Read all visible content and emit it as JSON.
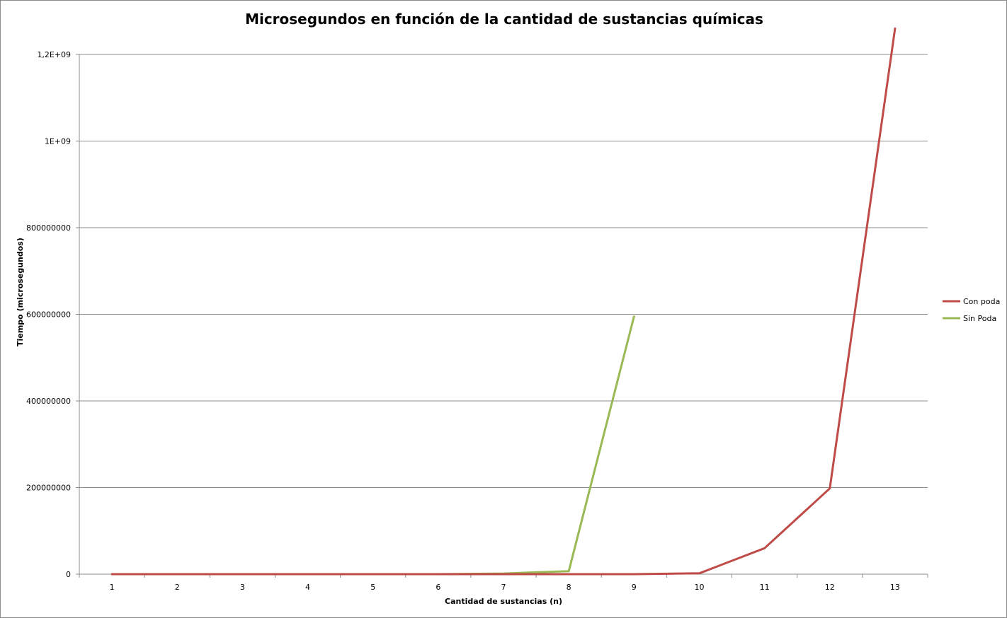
{
  "chart_data": {
    "type": "line",
    "title": "Microsegundos en función de la cantidad de sustancias químicas",
    "xlabel": "Cantidad  de sustancias  (n)",
    "ylabel": "Tiempo  (microsegundos)",
    "categories": [
      "1",
      "2",
      "3",
      "4",
      "5",
      "6",
      "7",
      "8",
      "9",
      "10",
      "11",
      "12",
      "13"
    ],
    "y_ticks": [
      {
        "value": 0,
        "label": "0"
      },
      {
        "value": 200000000,
        "label": "200000000"
      },
      {
        "value": 400000000,
        "label": "400000000"
      },
      {
        "value": 600000000,
        "label": "600000000"
      },
      {
        "value": 800000000,
        "label": "800000000"
      },
      {
        "value": 1000000000,
        "label": "1E+09"
      },
      {
        "value": 1200000000,
        "label": "1,2E+09"
      }
    ],
    "ylim": [
      0,
      1200000000
    ],
    "grid": true,
    "legend_position": "right",
    "series": [
      {
        "name": "Con poda",
        "color": "#be4b48",
        "values": [
          0,
          0,
          0,
          0,
          0,
          0,
          0,
          0,
          0,
          2000000,
          60000000,
          198000000,
          1260000000
        ]
      },
      {
        "name": "Sin Poda",
        "color": "#98b954",
        "values": [
          0,
          0,
          0,
          0,
          0,
          0,
          1500000,
          7000000,
          595000000,
          null,
          null,
          null,
          null
        ]
      }
    ]
  }
}
